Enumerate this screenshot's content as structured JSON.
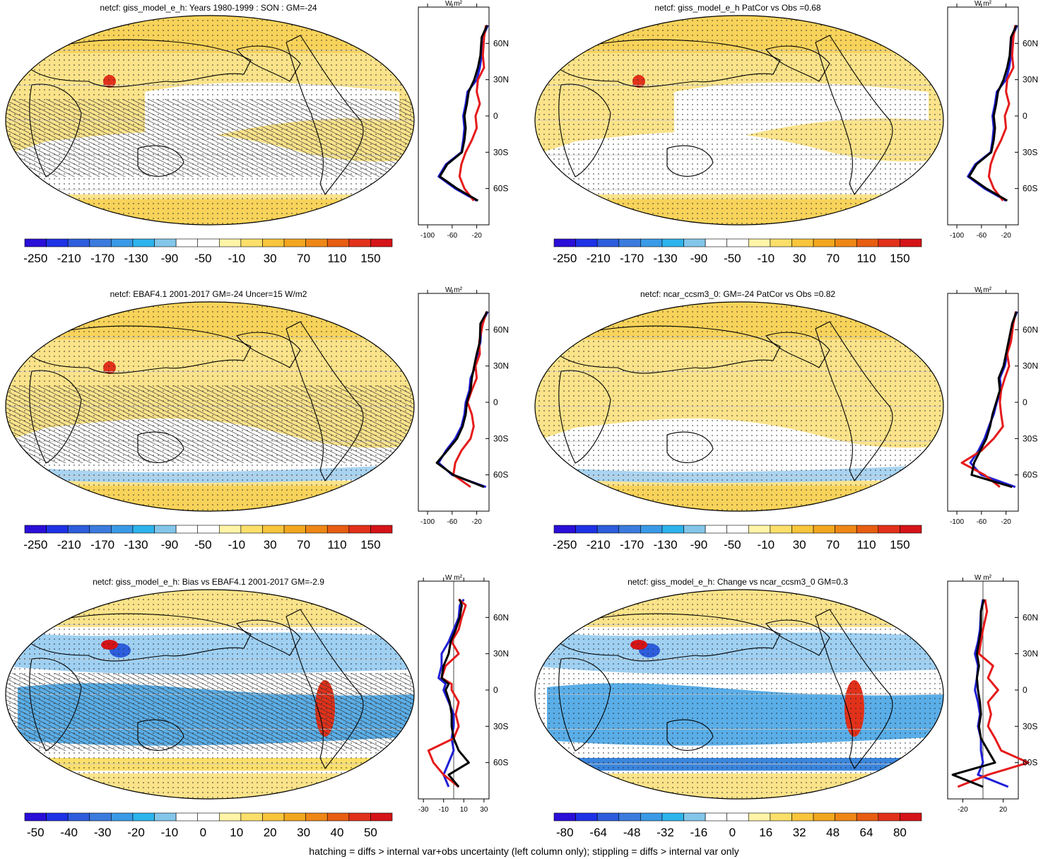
{
  "footer": "hatching = diffs > internal var+obs uncertainty (left column only); stippling = diffs > internal var only",
  "chart_data": [
    {
      "type": "heatmap",
      "title": "netcf: giss_model_e_h: Years 1980-1999 : SON : GM=-24",
      "colorbar_labels": [
        "-250",
        "-210",
        "-170",
        "-130",
        "-90",
        "-50",
        "-10",
        "30",
        "70",
        "110",
        "150"
      ],
      "zonal_mean": {
        "unit_label": "W m²",
        "x_ticks": [
          "-100",
          "-60",
          "-20"
        ],
        "lat_labels": [
          "60N",
          "30N",
          "0",
          "30S",
          "60S"
        ],
        "series": [
          {
            "color": "#1f1fd6",
            "lat": [
              75,
              65,
              50,
              40,
              30,
              20,
              10,
              0,
              -10,
              -20,
              -30,
              -40,
              -50,
              -60,
              -70
            ],
            "values": [
              -2,
              -10,
              -12,
              -15,
              -20,
              -35,
              -38,
              -42,
              -40,
              -42,
              -45,
              -70,
              -82,
              -55,
              -20
            ]
          },
          {
            "color": "#e51b1b",
            "lat": [
              75,
              65,
              50,
              40,
              30,
              20,
              10,
              0,
              -10,
              -20,
              -30,
              -40,
              -50,
              -60,
              -70
            ],
            "values": [
              -5,
              -8,
              -10,
              -8,
              -18,
              -20,
              -15,
              -22,
              -20,
              -28,
              -38,
              -45,
              -48,
              -40,
              -25
            ]
          },
          {
            "color": "#000000",
            "lat": [
              75,
              65,
              50,
              40,
              30,
              20,
              10,
              0,
              -10,
              -20,
              -30,
              -40,
              -50,
              -60,
              -70
            ],
            "values": [
              -3,
              -12,
              -14,
              -18,
              -24,
              -33,
              -36,
              -40,
              -38,
              -40,
              -44,
              -68,
              -80,
              -52,
              -18
            ]
          }
        ]
      }
    },
    {
      "type": "heatmap",
      "title": "netcf: giss_model_e_h PatCor vs Obs =0.68",
      "colorbar_labels": [
        "-250",
        "-210",
        "-170",
        "-130",
        "-90",
        "-50",
        "-10",
        "30",
        "70",
        "110",
        "150"
      ],
      "zonal_mean": {
        "unit_label": "W m²",
        "x_ticks": [
          "-100",
          "-60",
          "-20"
        ],
        "lat_labels": [
          "60N",
          "30N",
          "0",
          "30S",
          "60S"
        ],
        "series": [
          {
            "color": "#1f1fd6",
            "lat": [
              75,
              65,
              50,
              40,
              30,
              20,
              10,
              0,
              -10,
              -20,
              -30,
              -40,
              -50,
              -60,
              -70
            ],
            "values": [
              -2,
              -10,
              -12,
              -15,
              -20,
              -35,
              -38,
              -42,
              -40,
              -42,
              -45,
              -70,
              -82,
              -55,
              -20
            ]
          },
          {
            "color": "#e51b1b",
            "lat": [
              75,
              65,
              50,
              40,
              30,
              20,
              10,
              0,
              -10,
              -20,
              -30,
              -40,
              -50,
              -60,
              -70
            ],
            "values": [
              -5,
              -8,
              -10,
              -8,
              -18,
              -20,
              -15,
              -22,
              -20,
              -28,
              -38,
              -45,
              -48,
              -40,
              -25
            ]
          },
          {
            "color": "#000000",
            "lat": [
              75,
              65,
              50,
              40,
              30,
              20,
              10,
              0,
              -10,
              -20,
              -30,
              -40,
              -50,
              -60,
              -70
            ],
            "values": [
              -3,
              -12,
              -14,
              -18,
              -24,
              -33,
              -36,
              -40,
              -38,
              -40,
              -44,
              -68,
              -80,
              -52,
              -18
            ]
          }
        ]
      }
    },
    {
      "type": "heatmap",
      "title": "netcf: EBAF4.1 2001-2017 GM=-24 Uncer=15 W/m2",
      "colorbar_labels": [
        "-250",
        "-210",
        "-170",
        "-130",
        "-90",
        "-50",
        "-10",
        "30",
        "70",
        "110",
        "150"
      ],
      "zonal_mean": {
        "unit_label": "W m²",
        "x_ticks": [
          "-100",
          "-60",
          "-20"
        ],
        "lat_labels": [
          "60N",
          "30N",
          "0",
          "30S",
          "60S"
        ],
        "series": [
          {
            "color": "#1f1fd6",
            "lat": [
              75,
              65,
              50,
              40,
              30,
              20,
              10,
              0,
              -10,
              -20,
              -30,
              -40,
              -50,
              -60,
              -70
            ],
            "values": [
              -2,
              -12,
              -14,
              -18,
              -22,
              -30,
              -32,
              -38,
              -40,
              -45,
              -55,
              -70,
              -82,
              -60,
              -5
            ]
          },
          {
            "color": "#e51b1b",
            "lat": [
              75,
              65,
              50,
              40,
              30,
              20,
              10,
              0,
              -10,
              -20,
              -30,
              -40,
              -50,
              -60,
              -70
            ],
            "values": [
              -4,
              -10,
              -16,
              -15,
              -22,
              -20,
              -28,
              -35,
              -28,
              -25,
              -30,
              -45,
              -55,
              -58,
              -30
            ]
          },
          {
            "color": "#000000",
            "lat": [
              75,
              65,
              50,
              40,
              30,
              20,
              10,
              0,
              -10,
              -20,
              -30,
              -40,
              -50,
              -60,
              -70
            ],
            "values": [
              -3,
              -14,
              -15,
              -20,
              -24,
              -28,
              -30,
              -36,
              -38,
              -43,
              -52,
              -68,
              -85,
              -58,
              -8
            ]
          }
        ]
      }
    },
    {
      "type": "heatmap",
      "title": "netcf: ncar_ccsm3_0: GM=-24 PatCor vs Obs =0.82",
      "colorbar_labels": [
        "-250",
        "-210",
        "-170",
        "-130",
        "-90",
        "-50",
        "-10",
        "30",
        "70",
        "110",
        "150"
      ],
      "zonal_mean": {
        "unit_label": "W m²",
        "x_ticks": [
          "-100",
          "-60",
          "-20"
        ],
        "lat_labels": [
          "60N",
          "30N",
          "0",
          "30S",
          "60S"
        ],
        "series": [
          {
            "color": "#1f1fd6",
            "lat": [
              75,
              65,
              50,
              40,
              30,
              20,
              10,
              0,
              -10,
              -20,
              -30,
              -40,
              -50,
              -60,
              -70
            ],
            "values": [
              -2,
              -10,
              -14,
              -18,
              -22,
              -30,
              -28,
              -35,
              -40,
              -48,
              -55,
              -65,
              -78,
              -60,
              -5
            ]
          },
          {
            "color": "#e51b1b",
            "lat": [
              75,
              65,
              50,
              40,
              30,
              20,
              10,
              0,
              -10,
              -20,
              -30,
              -40,
              -50,
              -60,
              -70
            ],
            "values": [
              -4,
              -8,
              -12,
              -18,
              -15,
              -22,
              -28,
              -30,
              -28,
              -25,
              -40,
              -60,
              -92,
              -55,
              -30
            ]
          },
          {
            "color": "#000000",
            "lat": [
              75,
              65,
              50,
              40,
              30,
              20,
              10,
              0,
              -10,
              -20,
              -30,
              -40,
              -50,
              -60,
              -70
            ],
            "values": [
              -3,
              -10,
              -16,
              -20,
              -24,
              -32,
              -30,
              -36,
              -42,
              -46,
              -52,
              -62,
              -72,
              -76,
              -10
            ]
          }
        ]
      }
    },
    {
      "type": "heatmap",
      "title": "netcf: giss_model_e_h: Bias vs EBAF4.1 2001-2017  GM=-2.9",
      "colorbar_labels": [
        "-50",
        "-40",
        "-30",
        "-20",
        "-10",
        "0",
        "10",
        "20",
        "30",
        "40",
        "50"
      ],
      "zonal_mean": {
        "unit_label": "W m²",
        "x_ticks": [
          "-30",
          "-10",
          "10",
          "30"
        ],
        "lat_labels": [
          "60N",
          "30N",
          "0",
          "30S",
          "60S"
        ],
        "series": [
          {
            "color": "#1f1fd6",
            "lat": [
              75,
              70,
              60,
              50,
              40,
              30,
              20,
              10,
              5,
              0,
              -10,
              -20,
              -30,
              -40,
              -50,
              -60,
              -70,
              -80
            ],
            "values": [
              10,
              6,
              5,
              0,
              -5,
              -12,
              -12,
              -15,
              -8,
              -10,
              -5,
              0,
              0,
              -2,
              0,
              -5,
              -10,
              -5
            ]
          },
          {
            "color": "#e51b1b",
            "lat": [
              75,
              70,
              60,
              50,
              40,
              30,
              20,
              10,
              5,
              0,
              -10,
              -20,
              -30,
              -40,
              -50,
              -60,
              -70,
              -80
            ],
            "values": [
              5,
              12,
              8,
              5,
              -2,
              5,
              -8,
              -12,
              -2,
              -2,
              5,
              2,
              5,
              0,
              -25,
              -20,
              -10,
              5
            ]
          },
          {
            "color": "#000000",
            "lat": [
              75,
              70,
              60,
              50,
              40,
              30,
              20,
              10,
              5,
              0,
              -10,
              -20,
              -30,
              -40,
              -50,
              -60,
              -70,
              -80
            ],
            "values": [
              6,
              8,
              6,
              2,
              -3,
              -5,
              -10,
              -12,
              -5,
              -8,
              -4,
              -2,
              -2,
              0,
              5,
              15,
              -5,
              5
            ]
          }
        ]
      }
    },
    {
      "type": "heatmap",
      "title": "netcf: giss_model_e_h: Change vs ncar_ccsm3_0 GM=0.3",
      "colorbar_labels": [
        "-80",
        "-64",
        "-48",
        "-32",
        "-16",
        "0",
        "16",
        "32",
        "48",
        "64",
        "80"
      ],
      "zonal_mean": {
        "unit_label": "W m²",
        "x_ticks": [
          "-20",
          "20"
        ],
        "lat_labels": [
          "60N",
          "30N",
          "0",
          "30S",
          "60S"
        ],
        "series": [
          {
            "color": "#1f1fd6",
            "lat": [
              75,
              65,
              50,
              40,
              30,
              20,
              10,
              0,
              -10,
              -20,
              -30,
              -40,
              -50,
              -60,
              -70,
              -80
            ],
            "values": [
              0,
              -2,
              -3,
              -5,
              -8,
              -5,
              -6,
              -8,
              -5,
              -3,
              -5,
              -2,
              -2,
              0,
              -5,
              25
            ]
          },
          {
            "color": "#e51b1b",
            "lat": [
              75,
              65,
              50,
              40,
              30,
              20,
              10,
              0,
              -10,
              -20,
              -30,
              -40,
              -50,
              -60,
              -70,
              -80
            ],
            "values": [
              2,
              4,
              0,
              -2,
              -4,
              10,
              5,
              15,
              5,
              8,
              5,
              12,
              18,
              45,
              5,
              -25
            ]
          },
          {
            "color": "#000000",
            "lat": [
              75,
              65,
              50,
              40,
              30,
              20,
              10,
              0,
              -10,
              -20,
              -30,
              -40,
              -50,
              -60,
              -70,
              -80
            ],
            "values": [
              1,
              -2,
              -2,
              -4,
              -6,
              -4,
              -6,
              -5,
              -3,
              -2,
              -4,
              -2,
              5,
              12,
              -30,
              0
            ]
          }
        ]
      }
    }
  ]
}
